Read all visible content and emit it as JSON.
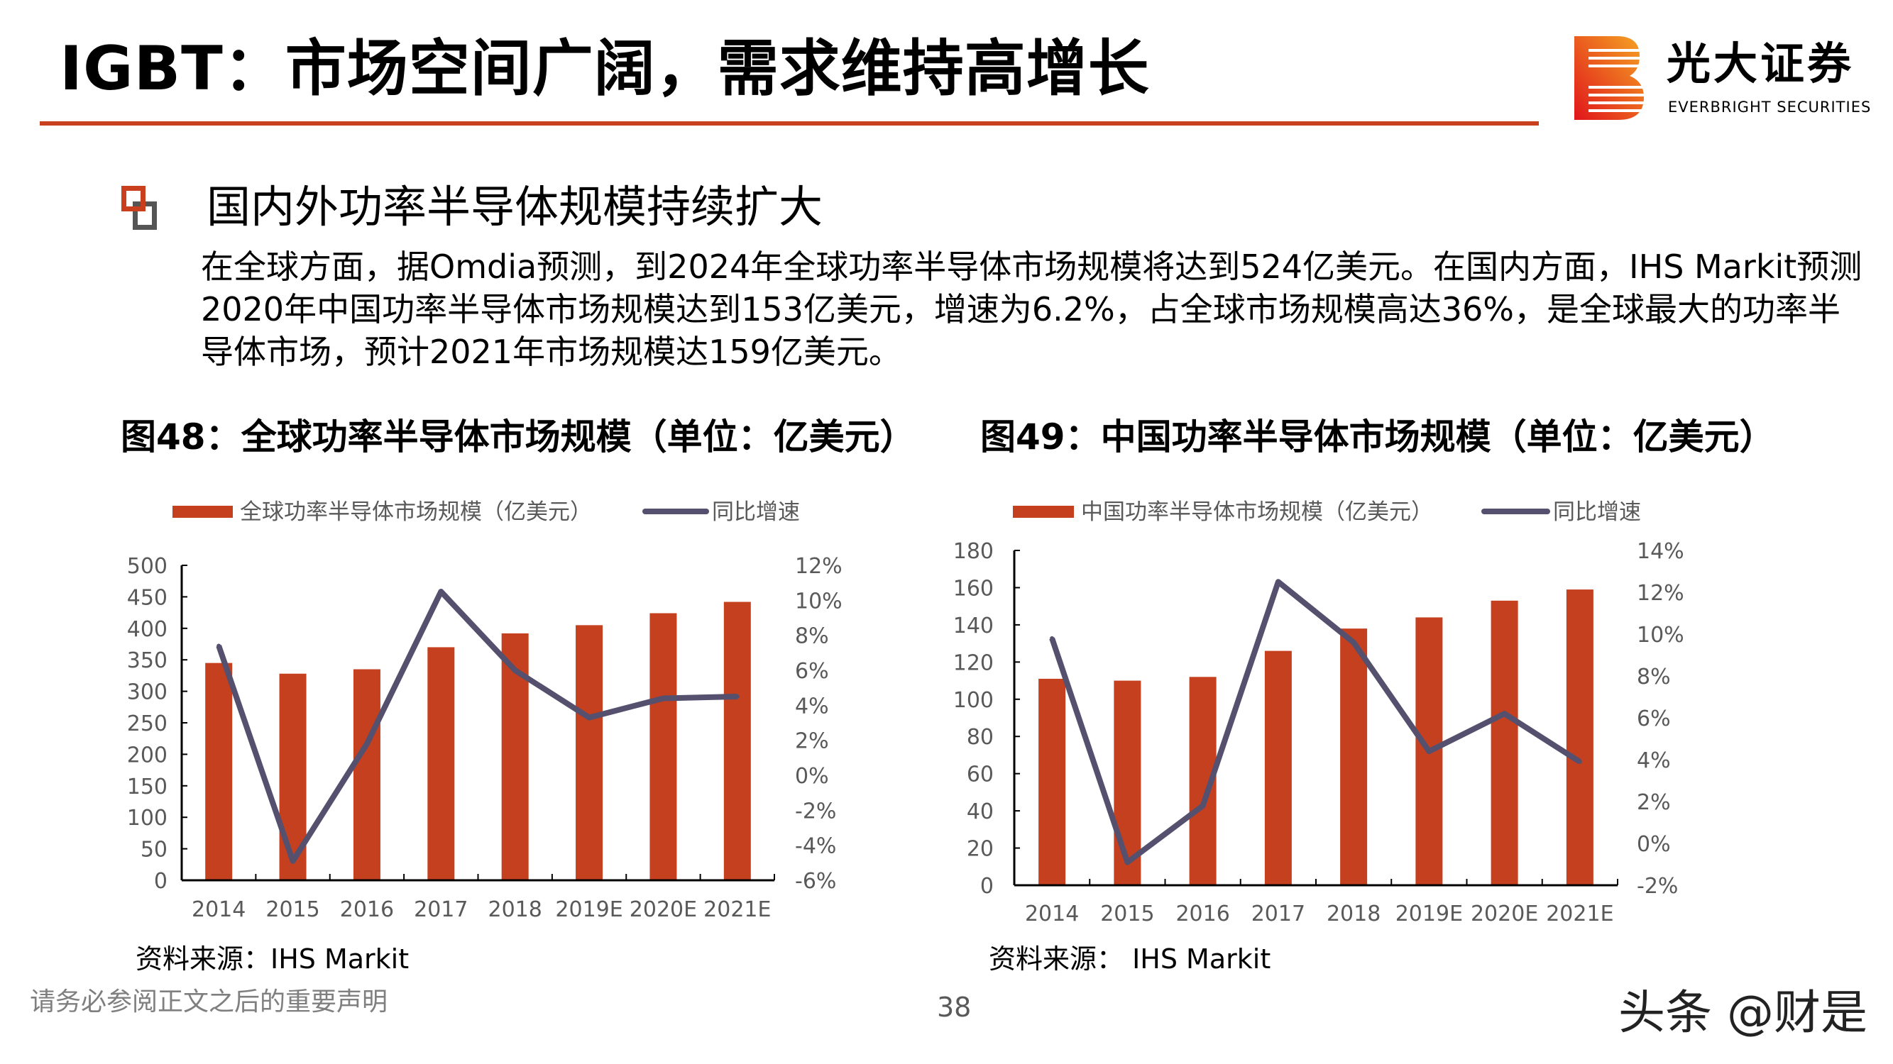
{
  "header": {
    "title": "IGBT：市场空间广阔，需求维持高增长",
    "logo_cn": "光大证券",
    "logo_en": "EVERBRIGHT SECURITIES"
  },
  "section": {
    "heading": "国内外功率半导体规模持续扩大",
    "paragraph": "在全球方面，据Omdia预测，到2024年全球功率半导体市场规模将达到524亿美元。在国内方面，IHS Markit预测2020年中国功率半导体市场规模达到153亿美元，增速为6.2%，占全球市场规模高达36%，是全球最大的功率半导体市场，预计2021年市场规模达159亿美元。"
  },
  "figures": [
    {
      "title": "图48：全球功率半导体市场规模（单位：亿美元）",
      "source": "资料来源：IHS Markit"
    },
    {
      "title": "图49：中国功率半导体市场规模（单位：亿美元）",
      "source": "资料来源：  IHS Markit"
    }
  ],
  "footer": {
    "disclaimer": "请务必参阅正文之后的重要声明",
    "page": "38",
    "watermark": "头条 @财是"
  },
  "colors": {
    "bar": "#c5401f",
    "line": "#55506e",
    "accent": "#c8401e"
  },
  "chart_data": [
    {
      "type": "bar+line",
      "categories": [
        "2014",
        "2015",
        "2016",
        "2017",
        "2018",
        "2019E",
        "2020E",
        "2021E"
      ],
      "series": [
        {
          "name": "全球功率半导体市场规模（亿美元）",
          "type": "bar",
          "axis": "left",
          "values": [
            345,
            328,
            335,
            370,
            392,
            405,
            424,
            442
          ]
        },
        {
          "name": "同比增速",
          "type": "line",
          "axis": "right",
          "values": [
            7.4,
            -4.9,
            1.8,
            10.5,
            6.0,
            3.3,
            4.4,
            4.5
          ]
        }
      ],
      "left_axis": {
        "ylim": [
          0,
          500
        ],
        "ticks": [
          "0",
          "50",
          "100",
          "150",
          "200",
          "250",
          "300",
          "350",
          "400",
          "450",
          "500"
        ]
      },
      "right_axis": {
        "ylim": [
          -6,
          12
        ],
        "ticks": [
          "-6%",
          "-4%",
          "-2%",
          "0%",
          "2%",
          "4%",
          "6%",
          "8%",
          "10%",
          "12%"
        ]
      },
      "legend": "top"
    },
    {
      "type": "bar+line",
      "categories": [
        "2014",
        "2015",
        "2016",
        "2017",
        "2018",
        "2019E",
        "2020E",
        "2021E"
      ],
      "series": [
        {
          "name": "中国功率半导体市场规模（亿美元）",
          "type": "bar",
          "axis": "left",
          "values": [
            111,
            110,
            112,
            126,
            138,
            144,
            153,
            159
          ]
        },
        {
          "name": "同比增速",
          "type": "line",
          "axis": "right",
          "values": [
            9.8,
            -0.9,
            1.8,
            12.5,
            9.6,
            4.4,
            6.2,
            3.9
          ]
        }
      ],
      "left_axis": {
        "ylim": [
          0,
          180
        ],
        "ticks": [
          "0",
          "20",
          "40",
          "60",
          "80",
          "100",
          "120",
          "140",
          "160",
          "180"
        ]
      },
      "right_axis": {
        "ylim": [
          -2,
          14
        ],
        "ticks": [
          "-2%",
          "0%",
          "2%",
          "4%",
          "6%",
          "8%",
          "10%",
          "12%",
          "14%"
        ]
      },
      "legend": "top"
    }
  ]
}
